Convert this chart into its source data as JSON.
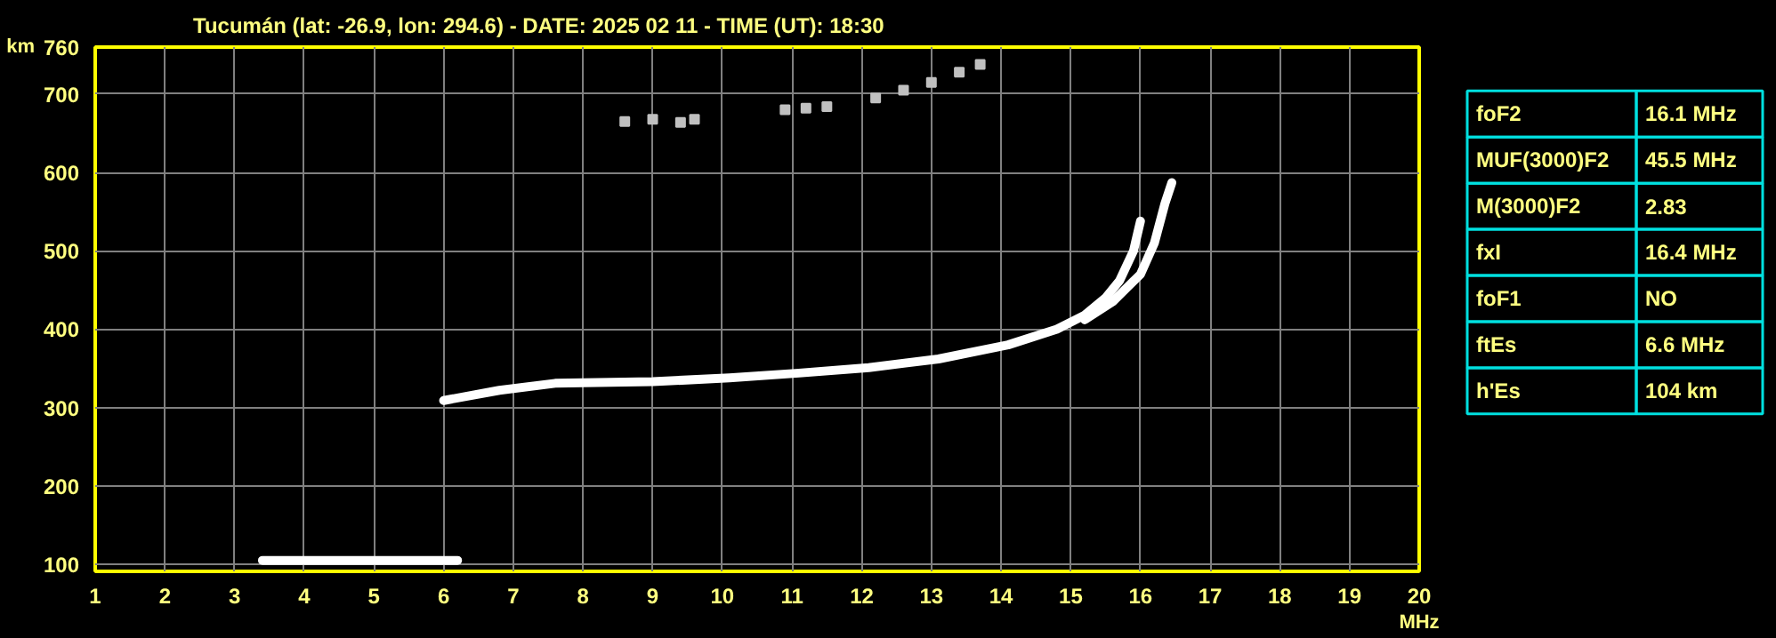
{
  "chart_data": [
    {
      "type": "line",
      "title": "Tucumán (lat: -26.9, lon: 294.6) - DATE: 2025 02 11 - TIME (UT): 18:30",
      "xlabel": "MHz",
      "ylabel": "km",
      "xlim": [
        1,
        20
      ],
      "xticks": [
        1,
        2,
        3,
        4,
        5,
        6,
        7,
        8,
        9,
        10,
        11,
        12,
        13,
        14,
        15,
        16,
        17,
        18,
        19,
        20
      ],
      "ylim": [
        91,
        760
      ],
      "yticks": [
        100,
        200,
        300,
        400,
        500,
        600,
        700,
        760
      ],
      "grid": true,
      "legend": false,
      "marker": "none",
      "line_style": "solid",
      "series": [
        {
          "color": "#ffffff",
          "x": [
            3.4,
            4.5,
            5.5,
            6.2
          ],
          "values": [
            105,
            105,
            105,
            105
          ]
        },
        {
          "color": "#ffffff",
          "x": [
            6.0,
            6.8,
            7.6,
            9.0,
            10.1,
            11.1,
            12.1,
            13.1,
            14.1,
            14.8,
            15.2,
            15.5,
            15.7,
            15.9,
            16.0
          ],
          "values": [
            309,
            322,
            331,
            333,
            338,
            344,
            351,
            362,
            380,
            400,
            418,
            440,
            462,
            500,
            538
          ]
        },
        {
          "color": "#ffffff",
          "x": [
            15.2,
            15.6,
            16.0,
            16.2,
            16.35,
            16.45
          ],
          "values": [
            412,
            435,
            470,
            510,
            560,
            587
          ]
        },
        {
          "type": "scatter",
          "marker": "square",
          "color": "#c0c0c0",
          "x": [
            8.6,
            9.0,
            9.4,
            9.6,
            10.9,
            11.2,
            11.5,
            12.2,
            12.6,
            13.0,
            13.4,
            13.7
          ],
          "values": [
            665,
            668,
            664,
            668,
            680,
            682,
            684,
            695,
            705,
            715,
            728,
            738
          ]
        }
      ]
    },
    {
      "type": "other",
      "annotations": [
        "foF2",
        "16.1 MHz",
        "MUF(3000)F2",
        "45.5 MHz",
        "M(3000)F2",
        "2.83",
        "fxI",
        "16.4 MHz",
        "foF1",
        "NO",
        "ftEs",
        "6.6 MHz",
        "h'Es",
        "104 km"
      ]
    }
  ]
}
